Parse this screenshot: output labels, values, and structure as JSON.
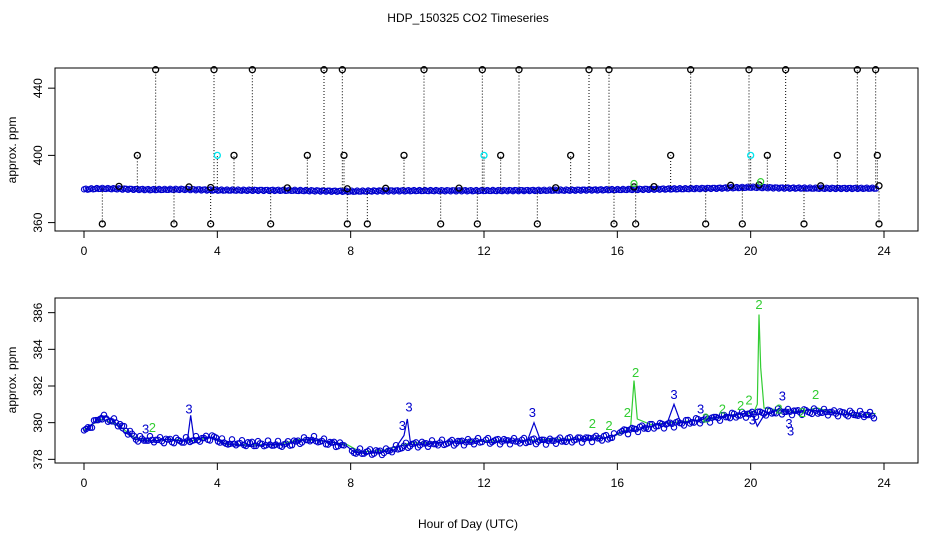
{
  "figure": {
    "title": "HDP_150325  CO2 Timeseries",
    "xlabel": "Hour of Day (UTC)"
  },
  "colors": {
    "axis": "#000000",
    "outlier": "#000000",
    "flag_cyan": "#00e5ee",
    "series_blue": "#0000cd",
    "series_green": "#32cd32"
  },
  "chart_data": [
    {
      "type": "scatter",
      "ylabel": "approx. ppm",
      "xlim": [
        0,
        24
      ],
      "ylim": [
        355,
        452
      ],
      "xticks": [
        0,
        4,
        8,
        12,
        16,
        20,
        24
      ],
      "yticks": [
        360,
        400,
        440
      ],
      "baseline": [
        [
          0,
          379.8
        ],
        [
          0.5,
          380.3
        ],
        [
          1,
          380.1
        ],
        [
          2,
          379.6
        ],
        [
          3,
          379.8
        ],
        [
          4,
          379.3
        ],
        [
          6,
          379.2
        ],
        [
          8,
          378.6
        ],
        [
          9,
          378.9
        ],
        [
          10,
          379.0
        ],
        [
          12,
          379.0
        ],
        [
          14,
          379.2
        ],
        [
          16,
          379.6
        ],
        [
          17,
          379.9
        ],
        [
          18,
          380.1
        ],
        [
          19,
          380.5
        ],
        [
          20,
          381.0
        ],
        [
          21,
          380.6
        ],
        [
          22,
          380.4
        ],
        [
          24,
          380.4
        ]
      ],
      "outliers_high": [
        2.15,
        3.9,
        5.05,
        7.2,
        7.75,
        10.2,
        11.95,
        13.05,
        15.15,
        15.75,
        18.2,
        19.95,
        21.05,
        23.2,
        23.75
      ],
      "outliers_mid": [
        1.6,
        4.5,
        6.7,
        7.8,
        9.6,
        12.5,
        14.6,
        17.6,
        20.5,
        22.6,
        23.8
      ],
      "outliers_low": [
        0.55,
        2.7,
        3.8,
        5.6,
        7.9,
        8.5,
        10.7,
        11.8,
        13.6,
        15.9,
        16.55,
        18.65,
        19.75,
        21.6,
        23.85
      ],
      "outliers_cyan": [
        4.0,
        12.0,
        20.0
      ],
      "outliers_base": [
        1.05,
        3.15,
        3.8,
        6.1,
        7.9,
        9.05,
        11.25,
        14.15,
        16.5,
        17.1,
        19.4,
        20.25,
        22.1,
        23.85
      ]
    },
    {
      "type": "line",
      "ylabel": "approx. ppm",
      "xlim": [
        0,
        24
      ],
      "ylim": [
        377.8,
        386.8
      ],
      "xticks": [
        0,
        4,
        8,
        12,
        16,
        20,
        24
      ],
      "yticks": [
        378,
        380,
        382,
        384,
        386
      ],
      "series": [
        {
          "name": "3",
          "points": [
            [
              0,
              379.5
            ],
            [
              0.15,
              379.8
            ],
            [
              0.3,
              380.0
            ],
            [
              0.5,
              380.4
            ],
            [
              0.7,
              380.3
            ],
            [
              0.9,
              380.1
            ],
            [
              1.1,
              379.6
            ],
            [
              1.3,
              379.4
            ],
            [
              1.5,
              379.1
            ],
            [
              1.8,
              379.0
            ],
            [
              2.1,
              379.0
            ],
            [
              2.5,
              379.1
            ],
            [
              2.9,
              379.0
            ],
            [
              3.1,
              379.0
            ],
            [
              3.2,
              380.4
            ],
            [
              3.3,
              379.1
            ],
            [
              3.6,
              379.2
            ],
            [
              3.9,
              379.2
            ],
            [
              4.1,
              378.9
            ],
            [
              4.5,
              378.8
            ],
            [
              5.0,
              378.7
            ],
            [
              5.5,
              378.8
            ],
            [
              6.0,
              378.8
            ],
            [
              6.4,
              379.0
            ],
            [
              6.8,
              379.1
            ],
            [
              7.2,
              379.0
            ],
            [
              7.6,
              378.9
            ],
            [
              7.9,
              378.7
            ],
            [
              8.1,
              378.4
            ],
            [
              8.5,
              378.3
            ],
            [
              8.9,
              378.4
            ],
            [
              9.3,
              378.5
            ],
            [
              9.6,
              379.3
            ],
            [
              9.7,
              380.2
            ],
            [
              9.8,
              378.8
            ],
            [
              10.1,
              378.8
            ],
            [
              10.6,
              378.9
            ],
            [
              11.0,
              379.0
            ],
            [
              11.5,
              378.9
            ],
            [
              11.9,
              379.0
            ],
            [
              12.2,
              378.9
            ],
            [
              12.8,
              379.0
            ],
            [
              13.3,
              379.0
            ],
            [
              13.5,
              380.0
            ],
            [
              13.7,
              379.0
            ],
            [
              14.2,
              379.0
            ],
            [
              14.8,
              379.1
            ],
            [
              15.3,
              379.1
            ],
            [
              15.8,
              379.2
            ],
            [
              16.1,
              379.5
            ],
            [
              16.6,
              379.6
            ],
            [
              17.0,
              379.8
            ],
            [
              17.5,
              380.0
            ],
            [
              17.7,
              381.0
            ],
            [
              17.9,
              380.0
            ],
            [
              18.3,
              380.1
            ],
            [
              18.6,
              380.2
            ],
            [
              19.0,
              380.3
            ],
            [
              19.4,
              380.4
            ],
            [
              19.8,
              380.5
            ],
            [
              20.1,
              380.3
            ],
            [
              20.2,
              379.8
            ],
            [
              20.4,
              380.4
            ],
            [
              20.7,
              380.6
            ],
            [
              20.9,
              380.8
            ],
            [
              21.1,
              380.5
            ],
            [
              21.4,
              380.6
            ],
            [
              21.8,
              380.7
            ],
            [
              22.2,
              380.6
            ],
            [
              22.6,
              380.5
            ],
            [
              23.0,
              380.4
            ],
            [
              23.4,
              380.3
            ],
            [
              23.75,
              380.4
            ]
          ],
          "labels": [
            [
              1.85,
              379.4
            ],
            [
              3.15,
              380.5
            ],
            [
              9.55,
              379.6
            ],
            [
              9.75,
              380.6
            ],
            [
              13.45,
              380.3
            ],
            [
              17.7,
              381.3
            ],
            [
              18.5,
              380.5
            ],
            [
              20.05,
              379.9
            ],
            [
              20.95,
              381.2
            ],
            [
              21.15,
              379.7
            ],
            [
              21.2,
              379.3
            ]
          ]
        },
        {
          "name": "2",
          "points": [
            [
              0,
              379.6
            ],
            [
              0.5,
              380.2
            ],
            [
              1.0,
              379.9
            ],
            [
              1.5,
              379.2
            ],
            [
              2.0,
              379.0
            ],
            [
              2.6,
              379.1
            ],
            [
              3.2,
              379.0
            ],
            [
              3.8,
              379.2
            ],
            [
              4.3,
              378.8
            ],
            [
              5.0,
              378.8
            ],
            [
              5.8,
              378.8
            ],
            [
              6.5,
              379.1
            ],
            [
              7.2,
              379.0
            ],
            [
              7.9,
              378.8
            ],
            [
              8.3,
              378.4
            ],
            [
              9.0,
              378.5
            ],
            [
              9.8,
              378.9
            ],
            [
              10.5,
              378.9
            ],
            [
              11.3,
              379.0
            ],
            [
              12.0,
              379.0
            ],
            [
              13.0,
              379.0
            ],
            [
              14.0,
              379.1
            ],
            [
              15.0,
              379.1
            ],
            [
              15.8,
              379.2
            ],
            [
              16.2,
              379.5
            ],
            [
              16.4,
              379.8
            ],
            [
              16.5,
              382.3
            ],
            [
              16.6,
              380.2
            ],
            [
              17.0,
              379.9
            ],
            [
              17.6,
              380.0
            ],
            [
              18.2,
              380.1
            ],
            [
              18.8,
              380.2
            ],
            [
              19.3,
              380.4
            ],
            [
              19.9,
              380.5
            ],
            [
              20.1,
              380.6
            ],
            [
              20.2,
              381.0
            ],
            [
              20.25,
              385.9
            ],
            [
              20.3,
              383.0
            ],
            [
              20.4,
              380.8
            ],
            [
              20.8,
              380.7
            ],
            [
              21.4,
              380.6
            ],
            [
              22.0,
              380.8
            ],
            [
              22.6,
              380.5
            ],
            [
              23.2,
              380.4
            ],
            [
              23.75,
              380.5
            ]
          ],
          "labels": [
            [
              2.05,
              379.5
            ],
            [
              15.25,
              379.7
            ],
            [
              15.75,
              379.6
            ],
            [
              16.3,
              380.3
            ],
            [
              16.55,
              382.5
            ],
            [
              18.65,
              380.0
            ],
            [
              19.15,
              380.5
            ],
            [
              19.7,
              380.7
            ],
            [
              19.95,
              381.0
            ],
            [
              20.25,
              386.2
            ],
            [
              20.85,
              380.5
            ],
            [
              21.55,
              380.3
            ],
            [
              21.95,
              381.3
            ]
          ]
        }
      ]
    }
  ]
}
